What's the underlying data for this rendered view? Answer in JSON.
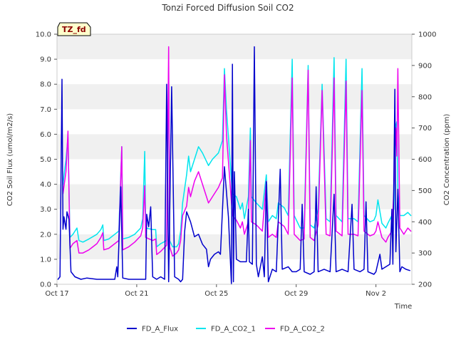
{
  "chart_data": {
    "type": "line",
    "title": "Tonzi Forced Diffusion Soil CO2",
    "badge": "TZ_fd",
    "xlabel": "Time",
    "ylabel": "CO2 Soil Flux (umol/m2/s)",
    "y2label": "CO2 Concentration (ppm)",
    "xlim": [
      0,
      17.8
    ],
    "ylim": [
      0,
      10
    ],
    "y2lim": [
      200,
      1000
    ],
    "x_ticks": [
      {
        "x": 0,
        "label": "Oct 17"
      },
      {
        "x": 4,
        "label": "Oct 21"
      },
      {
        "x": 8,
        "label": "Oct 25"
      },
      {
        "x": 12,
        "label": "Oct 29"
      },
      {
        "x": 16,
        "label": "Nov 2"
      }
    ],
    "y_ticks": [
      "0.0",
      "1.0",
      "2.0",
      "3.0",
      "4.0",
      "5.0",
      "6.0",
      "7.0",
      "8.0",
      "9.0",
      "10.0"
    ],
    "y2_ticks": [
      "200",
      "300",
      "400",
      "500",
      "600",
      "700",
      "800",
      "900",
      "1000"
    ],
    "grid": "horizontal bands",
    "legend_position": "bottom-center",
    "colors": {
      "FD_A_Flux": "#0000cc",
      "FD_A_CO2_1": "#00e5ee",
      "FD_A_CO2_2": "#ee00ee",
      "band": "#f0f0f0",
      "badge_bg": "#ffffcc"
    },
    "series": [
      {
        "name": "FD_A_Flux",
        "axis": "left",
        "points": [
          [
            0.05,
            0.2
          ],
          [
            0.15,
            0.3
          ],
          [
            0.25,
            8.2
          ],
          [
            0.3,
            2.2
          ],
          [
            0.35,
            2.7
          ],
          [
            0.45,
            2.2
          ],
          [
            0.5,
            2.9
          ],
          [
            0.6,
            2.6
          ],
          [
            0.7,
            0.5
          ],
          [
            0.9,
            0.3
          ],
          [
            1.2,
            0.2
          ],
          [
            1.5,
            0.25
          ],
          [
            2.0,
            0.2
          ],
          [
            2.5,
            0.2
          ],
          [
            2.9,
            0.2
          ],
          [
            3.0,
            0.7
          ],
          [
            3.05,
            0.3
          ],
          [
            3.2,
            3.9
          ],
          [
            3.3,
            0.25
          ],
          [
            3.6,
            0.2
          ],
          [
            4.0,
            0.2
          ],
          [
            4.3,
            0.2
          ],
          [
            4.45,
            0.2
          ],
          [
            4.5,
            2.8
          ],
          [
            4.6,
            2.3
          ],
          [
            4.7,
            3.1
          ],
          [
            4.8,
            0.3
          ],
          [
            5.0,
            0.2
          ],
          [
            5.2,
            0.3
          ],
          [
            5.4,
            0.2
          ],
          [
            5.5,
            8.0
          ],
          [
            5.6,
            0.1
          ],
          [
            5.75,
            7.9
          ],
          [
            5.9,
            0.3
          ],
          [
            6.1,
            0.2
          ],
          [
            6.2,
            0.1
          ],
          [
            6.3,
            0.2
          ],
          [
            6.4,
            2.1
          ],
          [
            6.5,
            2.9
          ],
          [
            6.7,
            2.5
          ],
          [
            6.9,
            1.9
          ],
          [
            7.1,
            2.0
          ],
          [
            7.3,
            1.6
          ],
          [
            7.5,
            1.4
          ],
          [
            7.6,
            0.7
          ],
          [
            7.7,
            1.0
          ],
          [
            7.9,
            1.2
          ],
          [
            8.1,
            1.3
          ],
          [
            8.2,
            1.2
          ],
          [
            8.4,
            4.7
          ],
          [
            8.6,
            2.7
          ],
          [
            8.75,
            0.0
          ],
          [
            8.8,
            8.8
          ],
          [
            8.85,
            0.1
          ],
          [
            8.9,
            4.5
          ],
          [
            9.0,
            1.0
          ],
          [
            9.2,
            0.9
          ],
          [
            9.5,
            0.9
          ],
          [
            9.6,
            3.0
          ],
          [
            9.65,
            0.9
          ],
          [
            9.8,
            0.8
          ],
          [
            9.9,
            9.5
          ],
          [
            10.0,
            0.8
          ],
          [
            10.1,
            0.3
          ],
          [
            10.3,
            1.1
          ],
          [
            10.4,
            0.3
          ],
          [
            10.5,
            4.1
          ],
          [
            10.6,
            0.1
          ],
          [
            10.8,
            0.6
          ],
          [
            11.0,
            0.5
          ],
          [
            11.2,
            4.6
          ],
          [
            11.3,
            0.6
          ],
          [
            11.6,
            0.7
          ],
          [
            11.8,
            0.5
          ],
          [
            12.0,
            0.5
          ],
          [
            12.2,
            0.6
          ],
          [
            12.3,
            3.2
          ],
          [
            12.4,
            0.5
          ],
          [
            12.7,
            0.4
          ],
          [
            12.9,
            0.5
          ],
          [
            13.0,
            3.9
          ],
          [
            13.1,
            0.5
          ],
          [
            13.4,
            0.6
          ],
          [
            13.7,
            0.5
          ],
          [
            13.9,
            3.6
          ],
          [
            14.0,
            0.5
          ],
          [
            14.3,
            0.6
          ],
          [
            14.6,
            0.5
          ],
          [
            14.8,
            3.2
          ],
          [
            14.9,
            0.6
          ],
          [
            15.2,
            0.5
          ],
          [
            15.4,
            0.6
          ],
          [
            15.5,
            3.3
          ],
          [
            15.6,
            0.5
          ],
          [
            15.9,
            0.4
          ],
          [
            16.0,
            0.5
          ],
          [
            16.2,
            1.2
          ],
          [
            16.3,
            0.6
          ],
          [
            16.5,
            0.7
          ],
          [
            16.7,
            0.8
          ],
          [
            16.8,
            3.0
          ],
          [
            16.85,
            0.8
          ],
          [
            16.95,
            7.8
          ],
          [
            17.0,
            1.3
          ],
          [
            17.1,
            3.8
          ],
          [
            17.2,
            0.5
          ],
          [
            17.3,
            0.7
          ],
          [
            17.5,
            0.6
          ],
          [
            17.7,
            0.55
          ]
        ]
      },
      {
        "name": "FD_A_CO2_1",
        "axis": "right",
        "points": [
          [
            0.3,
            520
          ],
          [
            0.45,
            600
          ],
          [
            0.55,
            670
          ],
          [
            0.65,
            350
          ],
          [
            0.8,
            360
          ],
          [
            1.0,
            380
          ],
          [
            1.1,
            340
          ],
          [
            1.3,
            335
          ],
          [
            1.6,
            345
          ],
          [
            2.0,
            360
          ],
          [
            2.2,
            375
          ],
          [
            2.3,
            390
          ],
          [
            2.35,
            340
          ],
          [
            2.6,
            345
          ],
          [
            2.9,
            360
          ],
          [
            3.1,
            370
          ],
          [
            3.25,
            640
          ],
          [
            3.3,
            345
          ],
          [
            3.6,
            350
          ],
          [
            3.9,
            360
          ],
          [
            4.2,
            380
          ],
          [
            4.3,
            410
          ],
          [
            4.4,
            625
          ],
          [
            4.45,
            380
          ],
          [
            4.8,
            375
          ],
          [
            4.95,
            375
          ],
          [
            5.0,
            320
          ],
          [
            5.2,
            330
          ],
          [
            5.5,
            340
          ],
          [
            5.6,
            895
          ],
          [
            5.65,
            340
          ],
          [
            5.8,
            320
          ],
          [
            6.0,
            320
          ],
          [
            6.1,
            330
          ],
          [
            6.2,
            370
          ],
          [
            6.3,
            460
          ],
          [
            6.5,
            550
          ],
          [
            6.6,
            610
          ],
          [
            6.7,
            560
          ],
          [
            6.9,
            600
          ],
          [
            7.1,
            640
          ],
          [
            7.3,
            620
          ],
          [
            7.6,
            580
          ],
          [
            7.8,
            600
          ],
          [
            8.1,
            620
          ],
          [
            8.3,
            660
          ],
          [
            8.4,
            890
          ],
          [
            8.5,
            760
          ],
          [
            8.8,
            490
          ],
          [
            9.0,
            480
          ],
          [
            9.2,
            440
          ],
          [
            9.3,
            460
          ],
          [
            9.4,
            410
          ],
          [
            9.6,
            480
          ],
          [
            9.7,
            700
          ],
          [
            9.75,
            480
          ],
          [
            10.0,
            460
          ],
          [
            10.3,
            440
          ],
          [
            10.5,
            550
          ],
          [
            10.6,
            400
          ],
          [
            10.8,
            420
          ],
          [
            11.0,
            410
          ],
          [
            11.1,
            460
          ],
          [
            11.4,
            445
          ],
          [
            11.6,
            420
          ],
          [
            11.8,
            920
          ],
          [
            11.9,
            420
          ],
          [
            12.2,
            380
          ],
          [
            12.4,
            380
          ],
          [
            12.6,
            900
          ],
          [
            12.7,
            390
          ],
          [
            12.9,
            380
          ],
          [
            13.1,
            440
          ],
          [
            13.3,
            840
          ],
          [
            13.5,
            410
          ],
          [
            13.7,
            400
          ],
          [
            13.9,
            925
          ],
          [
            14.0,
            420
          ],
          [
            14.3,
            400
          ],
          [
            14.5,
            920
          ],
          [
            14.6,
            410
          ],
          [
            14.9,
            410
          ],
          [
            15.1,
            400
          ],
          [
            15.3,
            890
          ],
          [
            15.4,
            420
          ],
          [
            15.7,
            400
          ],
          [
            15.9,
            405
          ],
          [
            16.0,
            420
          ],
          [
            16.1,
            470
          ],
          [
            16.3,
            395
          ],
          [
            16.5,
            380
          ],
          [
            16.6,
            395
          ],
          [
            16.8,
            420
          ],
          [
            16.9,
            440
          ],
          [
            17.0,
            710
          ],
          [
            17.05,
            720
          ],
          [
            17.1,
            500
          ],
          [
            17.2,
            420
          ],
          [
            17.4,
            420
          ],
          [
            17.6,
            430
          ],
          [
            17.75,
            420
          ]
        ]
      },
      {
        "name": "FD_A_CO2_2",
        "axis": "right",
        "points": [
          [
            0.3,
            490
          ],
          [
            0.45,
            560
          ],
          [
            0.55,
            690
          ],
          [
            0.65,
            315
          ],
          [
            0.8,
            330
          ],
          [
            1.0,
            340
          ],
          [
            1.1,
            300
          ],
          [
            1.3,
            300
          ],
          [
            1.6,
            310
          ],
          [
            2.0,
            330
          ],
          [
            2.2,
            350
          ],
          [
            2.3,
            365
          ],
          [
            2.35,
            310
          ],
          [
            2.6,
            315
          ],
          [
            2.9,
            330
          ],
          [
            3.1,
            340
          ],
          [
            3.25,
            640
          ],
          [
            3.3,
            310
          ],
          [
            3.6,
            320
          ],
          [
            3.9,
            335
          ],
          [
            4.2,
            355
          ],
          [
            4.3,
            380
          ],
          [
            4.4,
            515
          ],
          [
            4.45,
            350
          ],
          [
            4.8,
            340
          ],
          [
            4.95,
            345
          ],
          [
            5.0,
            295
          ],
          [
            5.2,
            305
          ],
          [
            5.5,
            325
          ],
          [
            5.6,
            960
          ],
          [
            5.65,
            320
          ],
          [
            5.8,
            290
          ],
          [
            6.0,
            300
          ],
          [
            6.1,
            310
          ],
          [
            6.2,
            340
          ],
          [
            6.3,
            420
          ],
          [
            6.5,
            450
          ],
          [
            6.6,
            510
          ],
          [
            6.7,
            480
          ],
          [
            6.9,
            530
          ],
          [
            7.1,
            560
          ],
          [
            7.3,
            520
          ],
          [
            7.6,
            460
          ],
          [
            7.8,
            480
          ],
          [
            8.1,
            510
          ],
          [
            8.3,
            540
          ],
          [
            8.4,
            870
          ],
          [
            8.5,
            680
          ],
          [
            8.8,
            420
          ],
          [
            9.0,
            405
          ],
          [
            9.2,
            380
          ],
          [
            9.3,
            400
          ],
          [
            9.4,
            360
          ],
          [
            9.6,
            400
          ],
          [
            9.7,
            660
          ],
          [
            9.75,
            400
          ],
          [
            10.0,
            390
          ],
          [
            10.3,
            370
          ],
          [
            10.5,
            530
          ],
          [
            10.6,
            350
          ],
          [
            10.8,
            360
          ],
          [
            11.0,
            350
          ],
          [
            11.1,
            400
          ],
          [
            11.4,
            385
          ],
          [
            11.6,
            360
          ],
          [
            11.8,
            860
          ],
          [
            11.9,
            360
          ],
          [
            12.2,
            340
          ],
          [
            12.4,
            345
          ],
          [
            12.6,
            885
          ],
          [
            12.7,
            350
          ],
          [
            12.9,
            340
          ],
          [
            13.1,
            390
          ],
          [
            13.3,
            820
          ],
          [
            13.5,
            360
          ],
          [
            13.7,
            355
          ],
          [
            13.9,
            860
          ],
          [
            14.0,
            370
          ],
          [
            14.3,
            355
          ],
          [
            14.5,
            850
          ],
          [
            14.6,
            360
          ],
          [
            14.9,
            360
          ],
          [
            15.1,
            355
          ],
          [
            15.3,
            820
          ],
          [
            15.4,
            370
          ],
          [
            15.7,
            355
          ],
          [
            15.9,
            360
          ],
          [
            16.0,
            370
          ],
          [
            16.1,
            400
          ],
          [
            16.3,
            350
          ],
          [
            16.5,
            335
          ],
          [
            16.6,
            350
          ],
          [
            16.8,
            370
          ],
          [
            16.9,
            500
          ],
          [
            17.0,
            700
          ],
          [
            17.05,
            610
          ],
          [
            17.1,
            890
          ],
          [
            17.2,
            380
          ],
          [
            17.4,
            360
          ],
          [
            17.6,
            380
          ],
          [
            17.75,
            370
          ]
        ]
      }
    ]
  }
}
